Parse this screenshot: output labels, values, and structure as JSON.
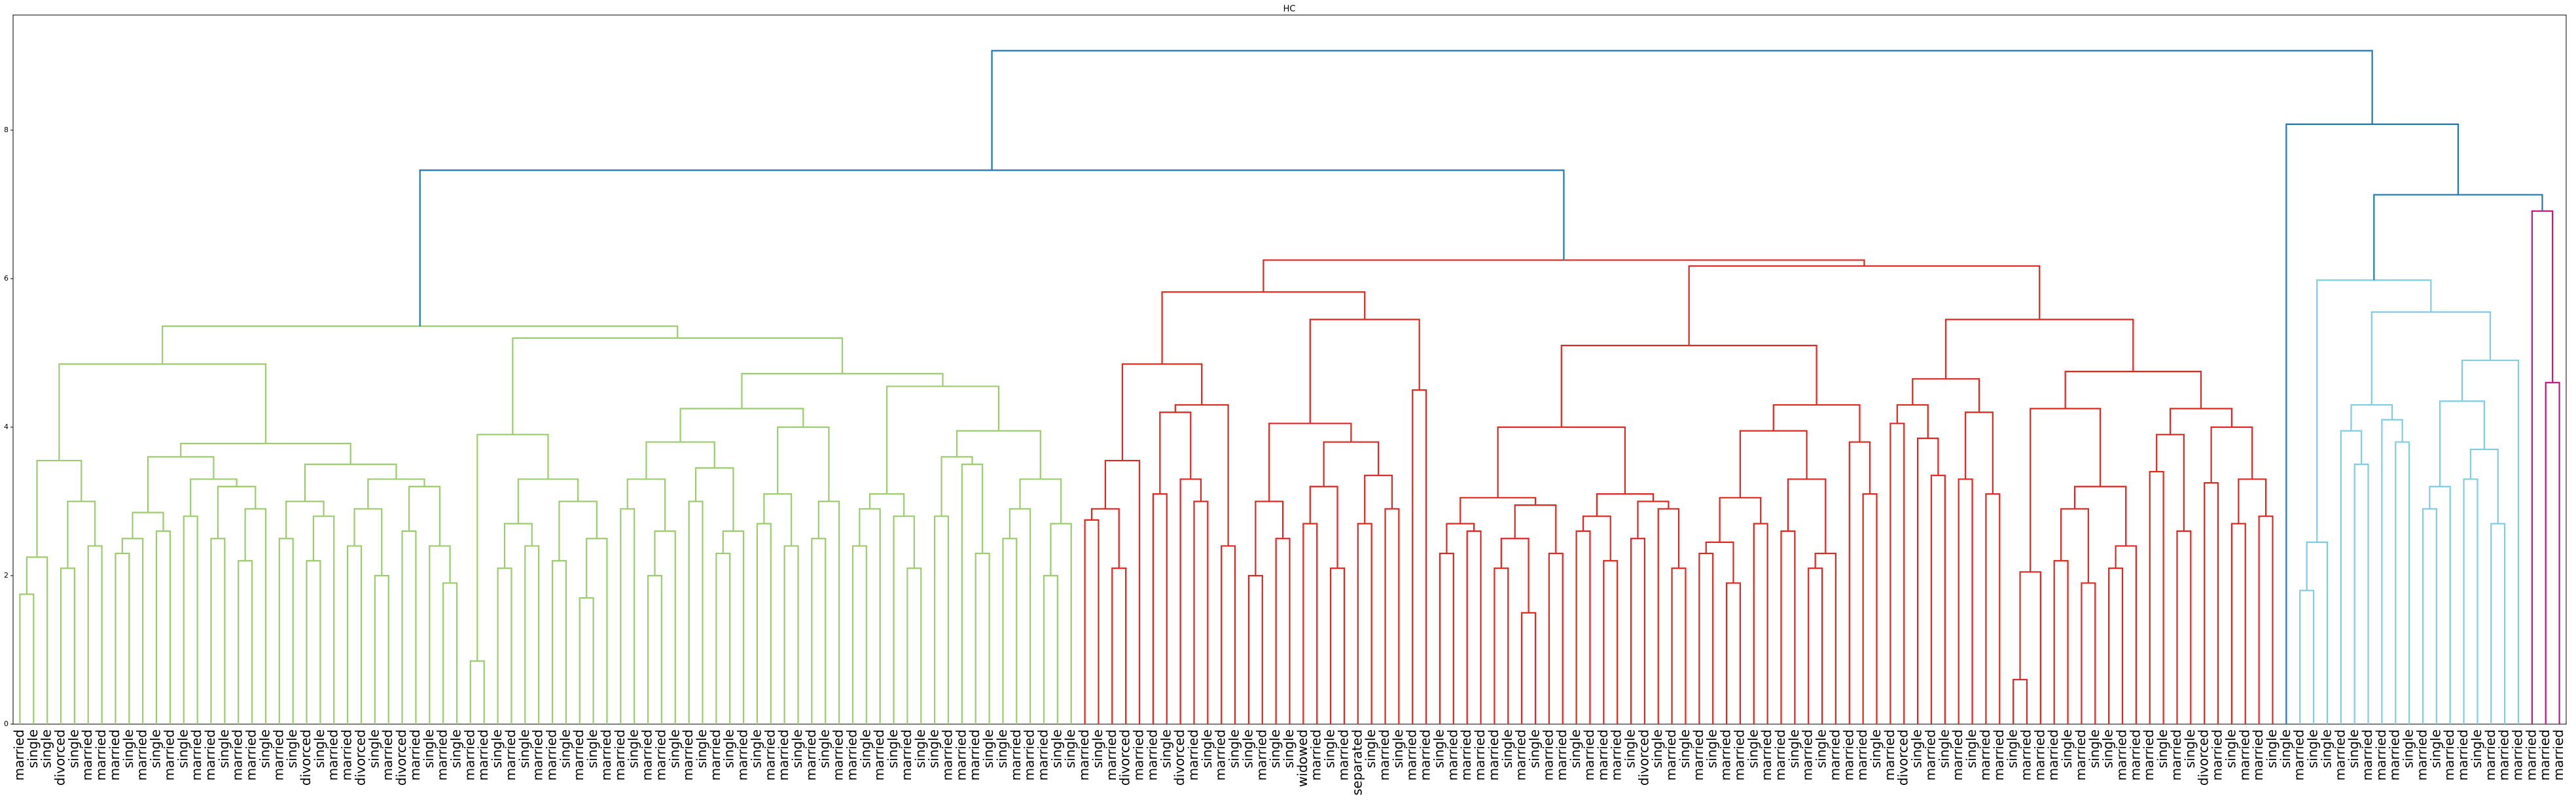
{
  "chart_data": {
    "type": "dendrogram",
    "title": "HC",
    "ylim": [
      0,
      9.55
    ],
    "yticks": [
      0,
      2,
      4,
      6,
      8
    ],
    "color_threshold": 7.0,
    "above_threshold_color": "#1f77b4",
    "cluster_colors": [
      "#9bcd6c",
      "#e3261f",
      "#7fcde3",
      "#c8157c"
    ],
    "tree": [
      9.07,
      [
        7.46,
        [
          5.36,
          [
            4.85,
            [
              3.55,
              [
                2.25,
                [
                  1.75,
                  "married",
                  "single"
                ],
                "single"
              ],
              [
                3.0,
                [
                  2.1,
                  "divorced",
                  "single"
                ],
                [
                  2.4,
                  "married",
                  "married"
                ]
              ]
            ],
            [
              3.78,
              [
                3.6,
                [
                  2.85,
                  [
                    2.5,
                    [
                      2.3,
                      "married",
                      "single"
                    ],
                    "married"
                  ],
                  [
                    2.6,
                    "single",
                    "married"
                  ]
                ],
                [
                  3.3,
                  [
                    2.8,
                    "single",
                    "married"
                  ],
                  [
                    3.2,
                    [
                      2.5,
                      "married",
                      "single"
                    ],
                    [
                      2.9,
                      [
                        2.2,
                        "married",
                        "married"
                      ],
                      "single"
                    ]
                  ]
                ]
              ],
              [
                3.5,
                [
                  3.0,
                  [
                    2.5,
                    "married",
                    "single"
                  ],
                  [
                    2.8,
                    [
                      2.2,
                      "divorced",
                      "single"
                    ],
                    "married"
                  ]
                ],
                [
                  3.3,
                  [
                    2.9,
                    [
                      2.4,
                      "married",
                      "divorced"
                    ],
                    [
                      2.0,
                      "single",
                      "married"
                    ]
                  ],
                  [
                    3.2,
                    [
                      2.6,
                      "divorced",
                      "married"
                    ],
                    [
                      2.4,
                      "single",
                      [
                        1.9,
                        "married",
                        "single"
                      ]
                    ]
                  ]
                ]
              ]
            ]
          ],
          [
            5.2,
            [
              3.9,
              [
                0.85,
                "married",
                "married"
              ],
              [
                3.3,
                [
                  2.7,
                  [
                    2.1,
                    "single",
                    "married"
                  ],
                  [
                    2.4,
                    "single",
                    "married"
                  ]
                ],
                [
                  3.0,
                  [
                    2.2,
                    "married",
                    "single"
                  ],
                  [
                    2.5,
                    [
                      1.7,
                      "married",
                      "single"
                    ],
                    "married"
                  ]
                ]
              ]
            ],
            [
              4.72,
              [
                4.25,
                [
                  3.8,
                  [
                    3.3,
                    [
                      2.9,
                      "married",
                      "single"
                    ],
                    [
                      2.6,
                      [
                        2.0,
                        "married",
                        "married"
                      ],
                      "single"
                    ]
                  ],
                  [
                    3.45,
                    [
                      3.0,
                      "married",
                      "single"
                    ],
                    [
                      2.6,
                      [
                        2.3,
                        "married",
                        "single"
                      ],
                      "married"
                    ]
                  ]
                ],
                [
                  4.0,
                  [
                    3.1,
                    [
                      2.7,
                      "single",
                      "married"
                    ],
                    [
                      2.4,
                      "married",
                      "single"
                    ]
                  ],
                  [
                    3.0,
                    [
                      2.5,
                      "married",
                      "single"
                    ],
                    "married"
                  ]
                ]
              ],
              [
                4.55,
                [
                  3.1,
                  [
                    2.9,
                    [
                      2.4,
                      "married",
                      "single"
                    ],
                    "married"
                  ],
                  [
                    2.8,
                    "single",
                    [
                      2.1,
                      "married",
                      "single"
                    ]
                  ]
                ],
                [
                  3.95,
                  [
                    3.6,
                    [
                      2.8,
                      "single",
                      "married"
                    ],
                    [
                      3.5,
                      "married",
                      [
                        2.3,
                        "married",
                        "single"
                      ]
                    ]
                  ],
                  [
                    3.3,
                    [
                      2.9,
                      [
                        2.5,
                        "single",
                        "married"
                      ],
                      "married"
                    ],
                    [
                      2.7,
                      [
                        2.0,
                        "married",
                        "single"
                      ],
                      "single"
                    ]
                  ]
                ]
              ]
            ]
          ]
        ],
        [
          6.25,
          [
            5.82,
            [
              4.85,
              [
                3.55,
                [
                  2.9,
                  [
                    2.75,
                    "married",
                    "single"
                  ],
                  [
                    2.1,
                    "married",
                    "divorced"
                  ]
                ],
                "married"
              ],
              [
                4.3,
                [
                  4.2,
                  [
                    3.1,
                    "married",
                    "single"
                  ],
                  [
                    3.3,
                    "divorced",
                    [
                      3.0,
                      "married",
                      "single"
                    ]
                  ]
                ],
                [
                  2.4,
                  "married",
                  "single"
                ]
              ]
            ],
            [
              5.45,
              [
                4.05,
                [
                  3.0,
                  [
                    2.0,
                    "single",
                    "married"
                  ],
                  [
                    2.5,
                    "single",
                    "single"
                  ]
                ],
                [
                  3.8,
                  [
                    3.2,
                    [
                      2.7,
                      "widowed",
                      "married"
                    ],
                    [
                      2.1,
                      "single",
                      "married"
                    ]
                  ],
                  [
                    3.35,
                    [
                      2.7,
                      "separated",
                      "single"
                    ],
                    [
                      2.9,
                      "married",
                      "single"
                    ]
                  ]
                ]
              ],
              [
                4.5,
                "married",
                "married"
              ]
            ]
          ],
          [
            6.17,
            [
              5.1,
              [
                4.0,
                [
                  3.05,
                  [
                    2.7,
                    [
                      2.3,
                      "single",
                      "married"
                    ],
                    [
                      2.6,
                      "married",
                      "married"
                    ]
                  ],
                  [
                    2.95,
                    [
                      2.5,
                      [
                        2.1,
                        "married",
                        "single"
                      ],
                      [
                        1.5,
                        "married",
                        "single"
                      ]
                    ],
                    [
                      2.3,
                      "married",
                      "married"
                    ]
                  ]
                ],
                [
                  3.1,
                  [
                    2.8,
                    [
                      2.6,
                      "single",
                      "married"
                    ],
                    [
                      2.2,
                      "married",
                      "married"
                    ]
                  ],
                  [
                    3.0,
                    [
                      2.5,
                      "single",
                      "divorced"
                    ],
                    [
                      2.9,
                      "single",
                      [
                        2.1,
                        "married",
                        "single"
                      ]
                    ]
                  ]
                ]
              ],
              [
                4.3,
                [
                  3.95,
                  [
                    3.05,
                    [
                      2.45,
                      [
                        2.3,
                        "married",
                        "single"
                      ],
                      [
                        1.9,
                        "married",
                        "married"
                      ]
                    ],
                    [
                      2.7,
                      "single",
                      "married"
                    ]
                  ],
                  [
                    3.3,
                    [
                      2.6,
                      "married",
                      "single"
                    ],
                    [
                      2.3,
                      [
                        2.1,
                        "married",
                        "single"
                      ],
                      "married"
                    ]
                  ]
                ],
                [
                  3.8,
                  "married",
                  [
                    3.1,
                    "married",
                    "single"
                  ]
                ]
              ]
            ],
            [
              5.45,
              [
                4.65,
                [
                  4.3,
                  [
                    4.05,
                    "married",
                    "divorced"
                  ],
                  [
                    3.85,
                    "single",
                    [
                      3.35,
                      "married",
                      "single"
                    ]
                  ]
                ],
                [
                  4.2,
                  [
                    3.3,
                    "married",
                    "single"
                  ],
                  [
                    3.1,
                    "married",
                    "married"
                  ]
                ]
              ],
              [
                4.75,
                [
                  4.25,
                  [
                    2.05,
                    [
                      0.6,
                      "single",
                      "married"
                    ],
                    "married"
                  ],
                  [
                    3.2,
                    [
                      2.9,
                      [
                        2.2,
                        "married",
                        "single"
                      ],
                      [
                        1.9,
                        "married",
                        "single"
                      ]
                    ],
                    [
                      2.4,
                      [
                        2.1,
                        "single",
                        "married"
                      ],
                      "married"
                    ]
                  ]
                ],
                [
                  4.25,
                  [
                    3.9,
                    [
                      3.4,
                      "married",
                      "single"
                    ],
                    [
                      2.6,
                      "married",
                      "single"
                    ]
                  ],
                  [
                    4.0,
                    [
                      3.25,
                      "divorced",
                      "married"
                    ],
                    [
                      3.3,
                      [
                        2.7,
                        "single",
                        "married"
                      ],
                      [
                        2.8,
                        "married",
                        "single"
                      ]
                    ]
                  ]
                ]
              ]
            ]
          ]
        ]
      ],
      [
        8.08,
        "single",
        [
          7.13,
          [
            5.98,
            [
              2.45,
              [
                1.8,
                "married",
                "single"
              ],
              "single"
            ],
            [
              5.55,
              [
                4.3,
                [
                  3.95,
                  "married",
                  [
                    3.5,
                    "single",
                    "married"
                  ]
                ],
                [
                  4.1,
                  "married",
                  [
                    3.8,
                    "married",
                    "single"
                  ]
                ]
              ],
              [
                4.9,
                [
                  4.35,
                  [
                    3.2,
                    [
                      2.9,
                      "married",
                      "single"
                    ],
                    "married"
                  ],
                  [
                    3.7,
                    [
                      3.3,
                      "married",
                      "single"
                    ],
                    [
                      2.7,
                      "married",
                      "married"
                    ]
                  ]
                ],
                "married"
              ]
            ]
          ],
          [
            6.91,
            "married",
            [
              4.6,
              "married",
              "married"
            ]
          ]
        ]
      ]
    ]
  }
}
